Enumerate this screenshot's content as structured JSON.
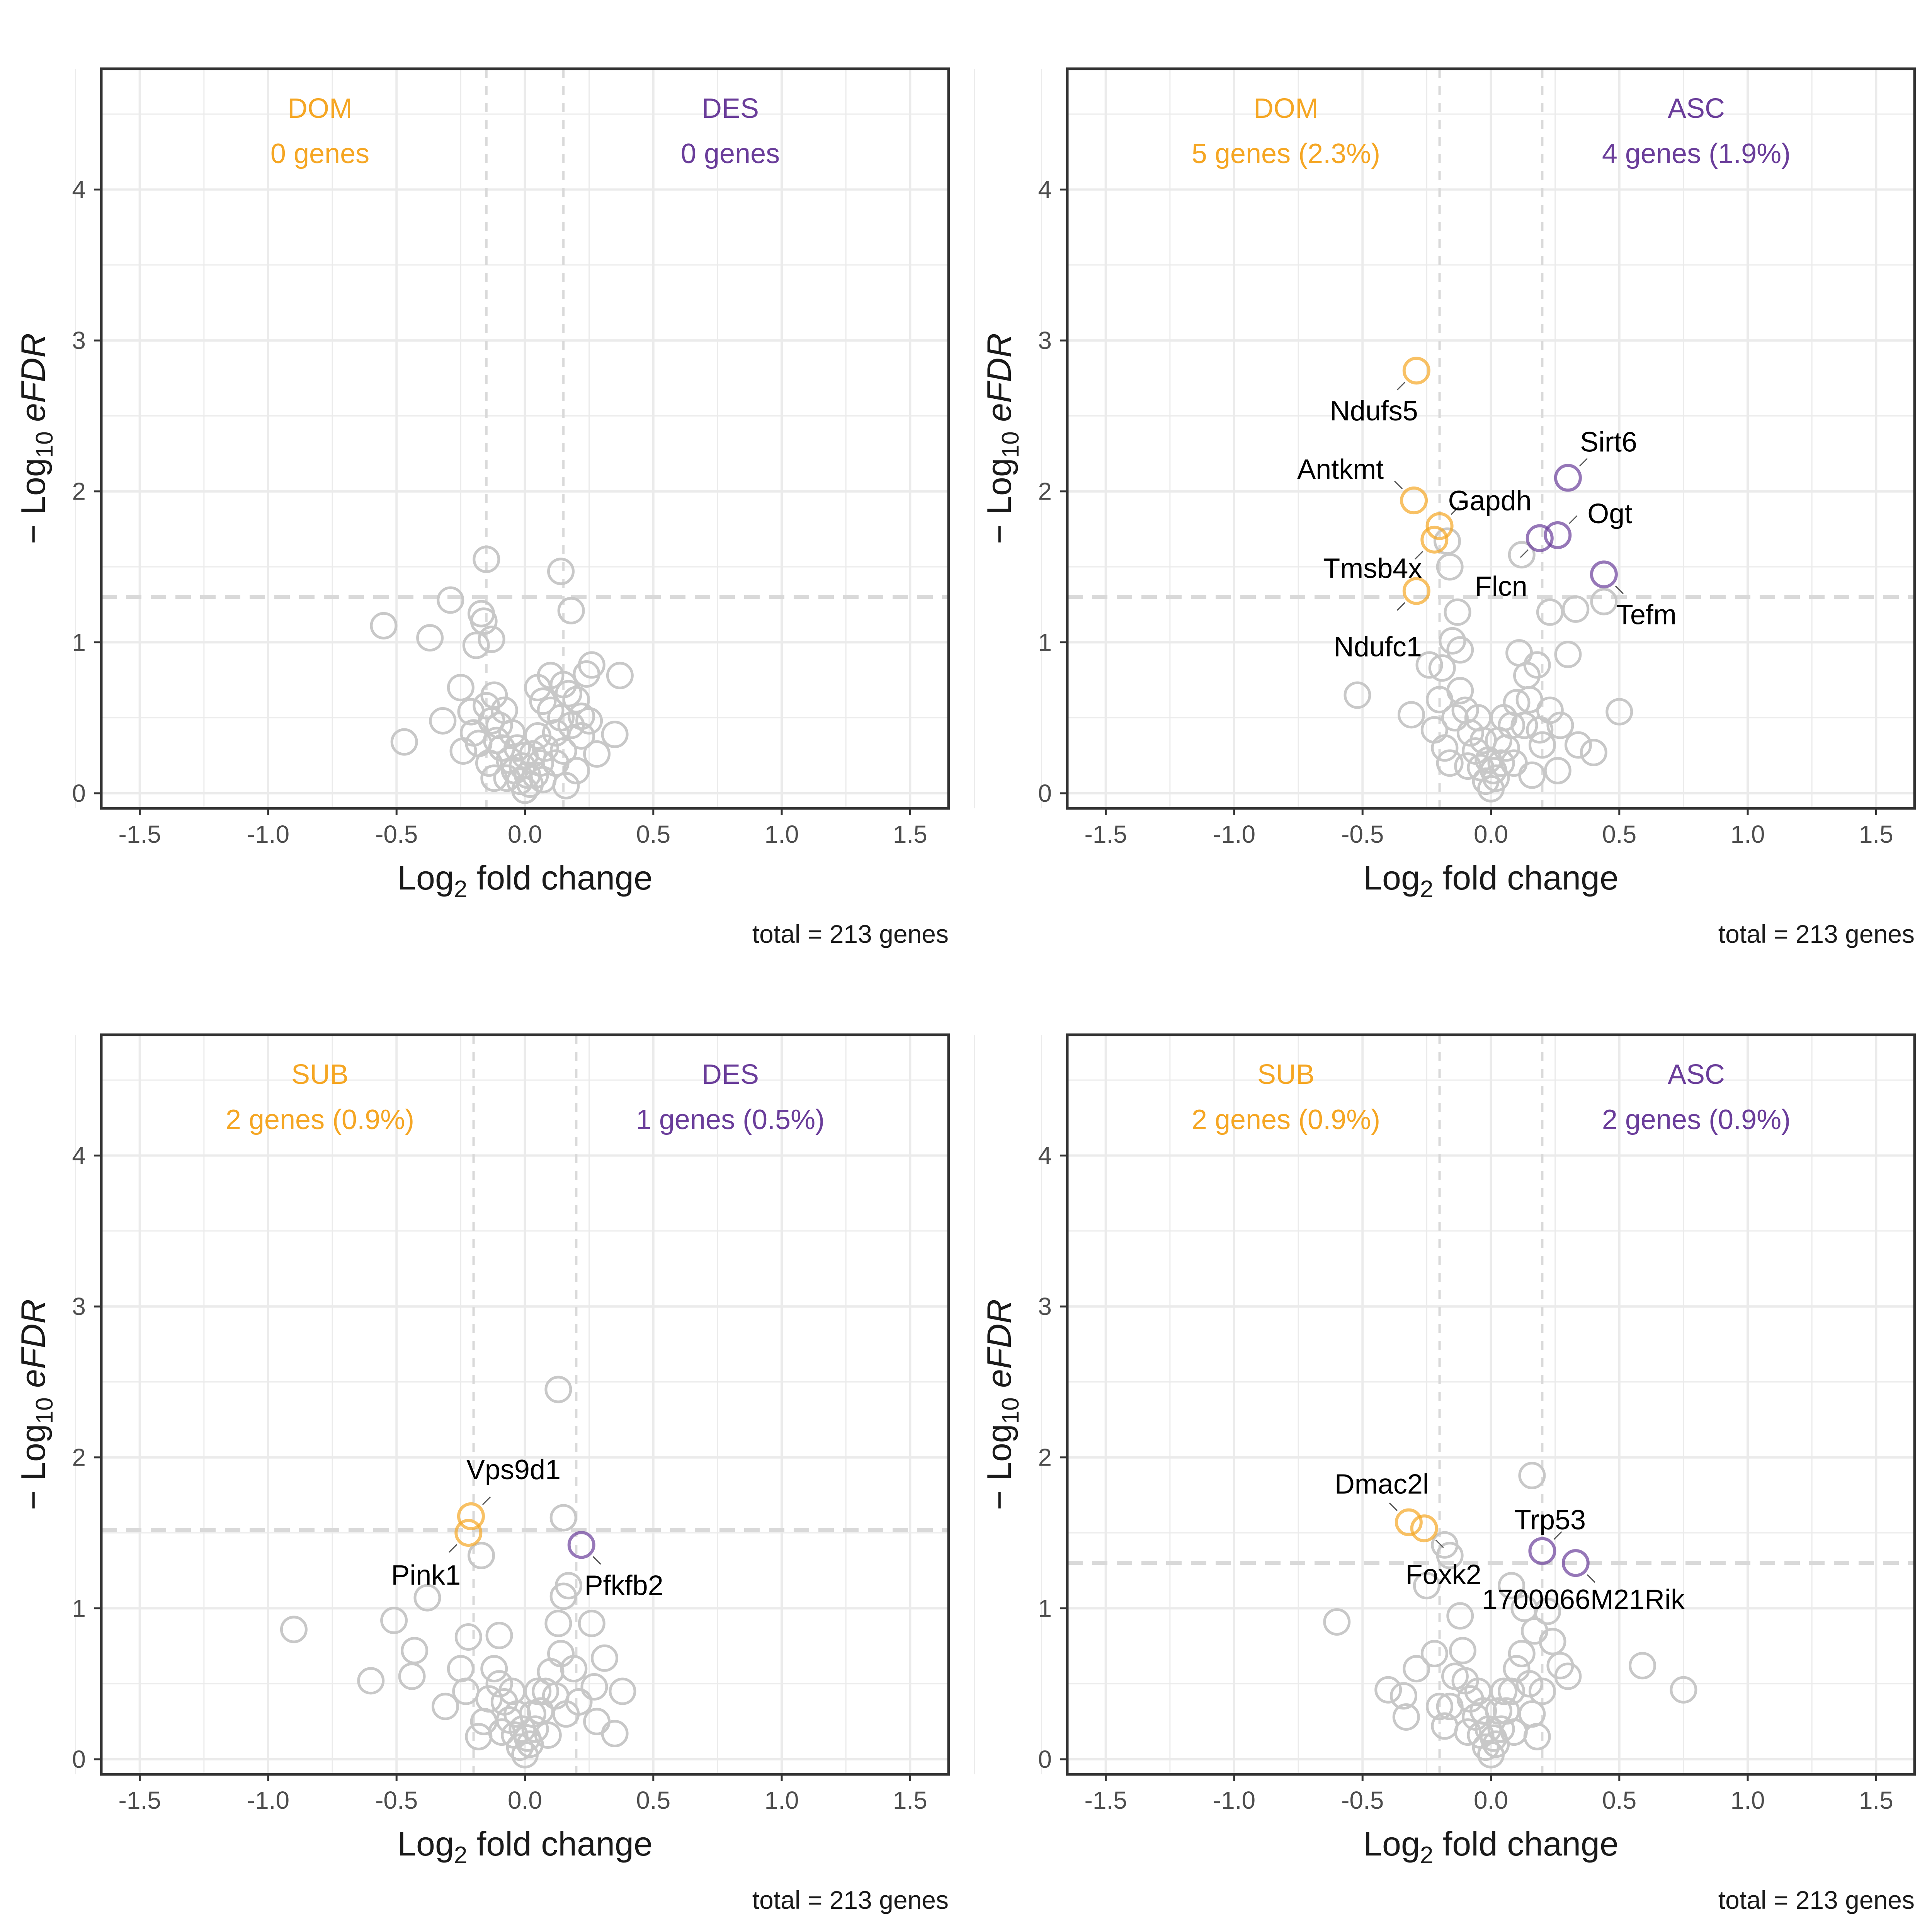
{
  "colors": {
    "down": "#F5A623",
    "up": "#6A3D9A",
    "neutral": "#C8C8C8",
    "threshold": "#D9D9D9"
  },
  "axes": {
    "xlabel_prefix": "Log",
    "xlabel_sub": "2",
    "xlabel_suffix": " fold change",
    "ylabel_prefix": "− Log",
    "ylabel_sub": "10",
    "ylabel_italic": " eFDR",
    "xticks": [
      "-1.5",
      "-1.0",
      "-0.5",
      "0.0",
      "0.5",
      "1.0",
      "1.5"
    ],
    "yticks": [
      "0",
      "1",
      "2",
      "3",
      "4"
    ]
  },
  "chart_data": [
    {
      "type": "scatter",
      "panel": "top-left",
      "xlim": [
        -1.65,
        1.65
      ],
      "ylim": [
        -0.1,
        4.8
      ],
      "fc_threshold": 0.15,
      "fdr_threshold": 1.3,
      "down_label": "DOM",
      "down_count": "0 genes",
      "up_label": "DES",
      "up_count": "0 genes",
      "caption": "total = 213 genes",
      "highlighted": [],
      "background": [
        [
          -0.15,
          1.55
        ],
        [
          0.14,
          1.47
        ],
        [
          -0.55,
          1.11
        ],
        [
          -0.37,
          1.03
        ],
        [
          -0.29,
          1.28
        ],
        [
          -0.17,
          1.19
        ],
        [
          -0.16,
          1.14
        ],
        [
          -0.19,
          0.98
        ],
        [
          -0.13,
          1.02
        ],
        [
          0.18,
          1.21
        ],
        [
          0.26,
          0.85
        ],
        [
          0.24,
          0.79
        ],
        [
          0.37,
          0.78
        ],
        [
          -0.47,
          0.34
        ],
        [
          -0.32,
          0.48
        ],
        [
          -0.25,
          0.7
        ],
        [
          -0.21,
          0.54
        ],
        [
          -0.18,
          0.33
        ],
        [
          -0.12,
          0.65
        ],
        [
          0.05,
          0.7
        ],
        [
          0.1,
          0.78
        ],
        [
          0.15,
          0.72
        ],
        [
          0.2,
          0.62
        ],
        [
          0.22,
          0.51
        ],
        [
          0.35,
          0.39
        ],
        [
          0.28,
          0.26
        ],
        [
          0.18,
          0.45
        ],
        [
          0.12,
          0.4
        ],
        [
          0.1,
          0.55
        ],
        [
          0.07,
          0.61
        ],
        [
          -0.08,
          0.55
        ],
        [
          -0.1,
          0.45
        ],
        [
          -0.13,
          0.48
        ],
        [
          -0.09,
          0.3
        ],
        [
          -0.06,
          0.22
        ],
        [
          -0.04,
          0.15
        ],
        [
          -0.02,
          0.08
        ],
        [
          0.0,
          0.02
        ],
        [
          0.02,
          0.06
        ],
        [
          0.04,
          0.12
        ],
        [
          0.06,
          0.2
        ],
        [
          0.08,
          0.3
        ],
        [
          -0.11,
          0.35
        ],
        [
          -0.14,
          0.2
        ],
        [
          -0.12,
          0.1
        ],
        [
          0.12,
          0.2
        ],
        [
          0.15,
          0.28
        ],
        [
          0.2,
          0.15
        ],
        [
          -0.05,
          0.4
        ],
        [
          0.05,
          0.38
        ],
        [
          -0.03,
          0.3
        ],
        [
          0.03,
          0.26
        ],
        [
          -0.01,
          0.18
        ],
        [
          0.01,
          0.12
        ],
        [
          -0.07,
          0.1
        ],
        [
          0.07,
          0.09
        ],
        [
          0.0,
          0.25
        ],
        [
          -0.15,
          0.58
        ],
        [
          0.17,
          0.66
        ],
        [
          0.22,
          0.38
        ],
        [
          0.14,
          0.5
        ],
        [
          -0.2,
          0.4
        ],
        [
          -0.24,
          0.28
        ],
        [
          0.25,
          0.48
        ],
        [
          0.16,
          0.05
        ]
      ]
    },
    {
      "type": "scatter",
      "panel": "top-right",
      "xlim": [
        -1.65,
        1.65
      ],
      "ylim": [
        -0.1,
        4.8
      ],
      "fc_threshold": 0.2,
      "fdr_threshold": 1.3,
      "down_label": "DOM",
      "down_count": "5 genes (2.3%)",
      "up_label": "ASC",
      "up_count": "4 genes (1.9%)",
      "caption": "total = 213 genes",
      "highlighted": [
        {
          "x": -0.29,
          "y": 2.8,
          "group": "down",
          "label": "Ndufs5"
        },
        {
          "x": -0.3,
          "y": 1.94,
          "group": "down",
          "label": "Antkmt"
        },
        {
          "x": -0.2,
          "y": 1.77,
          "group": "down",
          "label": "Gapdh"
        },
        {
          "x": -0.22,
          "y": 1.68,
          "group": "down",
          "label": "Tmsb4x"
        },
        {
          "x": -0.29,
          "y": 1.34,
          "group": "down",
          "label": "Ndufc1"
        },
        {
          "x": 0.3,
          "y": 2.09,
          "group": "up",
          "label": "Sirt6"
        },
        {
          "x": 0.26,
          "y": 1.71,
          "group": "up",
          "label": "Ogt"
        },
        {
          "x": 0.19,
          "y": 1.69,
          "group": "up",
          "label": "Flcn"
        },
        {
          "x": 0.44,
          "y": 1.45,
          "group": "up",
          "label": "Tefm"
        }
      ],
      "background": [
        [
          -0.17,
          1.67
        ],
        [
          -0.16,
          1.5
        ],
        [
          -0.13,
          1.2
        ],
        [
          0.12,
          1.58
        ],
        [
          0.23,
          1.2
        ],
        [
          0.33,
          1.22
        ],
        [
          0.44,
          1.27
        ],
        [
          -0.15,
          1.01
        ],
        [
          -0.19,
          0.83
        ],
        [
          -0.24,
          0.85
        ],
        [
          -0.52,
          0.65
        ],
        [
          -0.31,
          0.52
        ],
        [
          0.11,
          0.93
        ],
        [
          0.18,
          0.85
        ],
        [
          0.3,
          0.92
        ],
        [
          0.5,
          0.54
        ],
        [
          0.4,
          0.27
        ],
        [
          0.34,
          0.32
        ],
        [
          0.27,
          0.45
        ],
        [
          0.23,
          0.55
        ],
        [
          0.14,
          0.78
        ],
        [
          0.1,
          0.6
        ],
        [
          0.08,
          0.45
        ],
        [
          0.06,
          0.3
        ],
        [
          0.04,
          0.2
        ],
        [
          0.02,
          0.1
        ],
        [
          0.0,
          0.03
        ],
        [
          -0.02,
          0.08
        ],
        [
          -0.04,
          0.17
        ],
        [
          -0.06,
          0.28
        ],
        [
          -0.08,
          0.4
        ],
        [
          -0.1,
          0.55
        ],
        [
          -0.12,
          0.68
        ],
        [
          -0.14,
          0.5
        ],
        [
          -0.18,
          0.3
        ],
        [
          -0.22,
          0.42
        ],
        [
          -0.2,
          0.62
        ],
        [
          -0.16,
          0.2
        ],
        [
          0.16,
          0.12
        ],
        [
          0.26,
          0.15
        ],
        [
          0.2,
          0.32
        ],
        [
          0.13,
          0.45
        ],
        [
          -0.05,
          0.5
        ],
        [
          0.05,
          0.5
        ],
        [
          -0.03,
          0.35
        ],
        [
          0.03,
          0.35
        ],
        [
          -0.01,
          0.22
        ],
        [
          0.01,
          0.15
        ],
        [
          0.15,
          0.62
        ],
        [
          -0.12,
          0.95
        ],
        [
          0.19,
          0.42
        ],
        [
          -0.09,
          0.18
        ],
        [
          0.09,
          0.2
        ]
      ]
    },
    {
      "type": "scatter",
      "panel": "bottom-left",
      "xlim": [
        -1.65,
        1.65
      ],
      "ylim": [
        -0.1,
        4.8
      ],
      "fc_threshold": 0.2,
      "fdr_threshold": 1.52,
      "down_label": "SUB",
      "down_count": "2 genes (0.9%)",
      "up_label": "DES",
      "up_count": "1 genes (0.5%)",
      "caption": "total = 213 genes",
      "highlighted": [
        {
          "x": -0.21,
          "y": 1.61,
          "group": "down",
          "label": "Vps9d1"
        },
        {
          "x": -0.22,
          "y": 1.5,
          "group": "down",
          "label": "Pink1"
        },
        {
          "x": 0.22,
          "y": 1.42,
          "group": "up",
          "label": "Pfkfb2"
        }
      ],
      "background": [
        [
          0.13,
          2.45
        ],
        [
          0.15,
          1.6
        ],
        [
          -0.17,
          1.35
        ],
        [
          0.17,
          1.15
        ],
        [
          0.15,
          1.08
        ],
        [
          -0.38,
          1.07
        ],
        [
          -0.51,
          0.92
        ],
        [
          -0.9,
          0.86
        ],
        [
          -0.6,
          0.52
        ],
        [
          -0.43,
          0.72
        ],
        [
          -0.44,
          0.55
        ],
        [
          -0.31,
          0.35
        ],
        [
          -0.23,
          0.45
        ],
        [
          -0.22,
          0.81
        ],
        [
          -0.1,
          0.82
        ],
        [
          0.26,
          0.9
        ],
        [
          0.31,
          0.67
        ],
        [
          0.27,
          0.48
        ],
        [
          0.38,
          0.45
        ],
        [
          0.28,
          0.25
        ],
        [
          0.35,
          0.17
        ],
        [
          0.19,
          0.6
        ],
        [
          0.14,
          0.7
        ],
        [
          0.1,
          0.58
        ],
        [
          0.08,
          0.45
        ],
        [
          0.06,
          0.32
        ],
        [
          0.04,
          0.2
        ],
        [
          0.02,
          0.1
        ],
        [
          0.0,
          0.03
        ],
        [
          -0.02,
          0.08
        ],
        [
          -0.04,
          0.16
        ],
        [
          -0.06,
          0.26
        ],
        [
          -0.08,
          0.38
        ],
        [
          -0.1,
          0.5
        ],
        [
          -0.12,
          0.6
        ],
        [
          -0.14,
          0.4
        ],
        [
          -0.16,
          0.25
        ],
        [
          -0.18,
          0.15
        ],
        [
          0.16,
          0.3
        ],
        [
          0.12,
          0.42
        ],
        [
          -0.05,
          0.45
        ],
        [
          0.05,
          0.45
        ],
        [
          -0.03,
          0.3
        ],
        [
          0.03,
          0.3
        ],
        [
          -0.01,
          0.2
        ],
        [
          0.01,
          0.14
        ],
        [
          -0.09,
          0.18
        ],
        [
          0.09,
          0.16
        ],
        [
          0.21,
          0.38
        ],
        [
          -0.25,
          0.6
        ],
        [
          0.13,
          0.9
        ]
      ]
    },
    {
      "type": "scatter",
      "panel": "bottom-right",
      "xlim": [
        -1.65,
        1.65
      ],
      "ylim": [
        -0.1,
        4.8
      ],
      "fc_threshold": 0.2,
      "fdr_threshold": 1.3,
      "down_label": "SUB",
      "down_count": "2 genes (0.9%)",
      "up_label": "ASC",
      "up_count": "2 genes (0.9%)",
      "caption": "total = 213 genes",
      "highlighted": [
        {
          "x": -0.32,
          "y": 1.57,
          "group": "down",
          "label": "Dmac2l"
        },
        {
          "x": -0.26,
          "y": 1.53,
          "group": "down",
          "label": "Foxk2"
        },
        {
          "x": 0.2,
          "y": 1.38,
          "group": "up",
          "label": "Trp53"
        },
        {
          "x": 0.33,
          "y": 1.3,
          "group": "up",
          "label": "1700066M21Rik"
        }
      ],
      "background": [
        [
          0.16,
          1.88
        ],
        [
          -0.18,
          1.42
        ],
        [
          -0.16,
          1.35
        ],
        [
          -0.6,
          0.91
        ],
        [
          -0.25,
          1.15
        ],
        [
          -0.12,
          0.95
        ],
        [
          -0.11,
          0.72
        ],
        [
          0.08,
          1.15
        ],
        [
          0.13,
          1.0
        ],
        [
          0.17,
          0.85
        ],
        [
          0.22,
          0.98
        ],
        [
          0.24,
          0.78
        ],
        [
          0.27,
          0.62
        ],
        [
          0.59,
          0.62
        ],
        [
          0.75,
          0.46
        ],
        [
          -0.4,
          0.46
        ],
        [
          -0.34,
          0.42
        ],
        [
          -0.29,
          0.6
        ],
        [
          -0.22,
          0.7
        ],
        [
          0.1,
          0.6
        ],
        [
          0.08,
          0.45
        ],
        [
          0.06,
          0.32
        ],
        [
          0.04,
          0.2
        ],
        [
          0.02,
          0.1
        ],
        [
          0.0,
          0.03
        ],
        [
          -0.02,
          0.08
        ],
        [
          -0.04,
          0.16
        ],
        [
          -0.06,
          0.28
        ],
        [
          -0.08,
          0.4
        ],
        [
          -0.1,
          0.52
        ],
        [
          -0.14,
          0.55
        ],
        [
          -0.16,
          0.35
        ],
        [
          -0.18,
          0.22
        ],
        [
          0.16,
          0.3
        ],
        [
          0.15,
          0.5
        ],
        [
          0.18,
          0.15
        ],
        [
          0.12,
          0.7
        ],
        [
          -0.05,
          0.45
        ],
        [
          0.05,
          0.45
        ],
        [
          -0.03,
          0.32
        ],
        [
          0.03,
          0.32
        ],
        [
          -0.01,
          0.2
        ],
        [
          0.01,
          0.14
        ],
        [
          -0.09,
          0.18
        ],
        [
          0.09,
          0.18
        ],
        [
          0.2,
          0.45
        ],
        [
          -0.2,
          0.35
        ],
        [
          -0.33,
          0.28
        ],
        [
          0.3,
          0.55
        ]
      ]
    }
  ]
}
